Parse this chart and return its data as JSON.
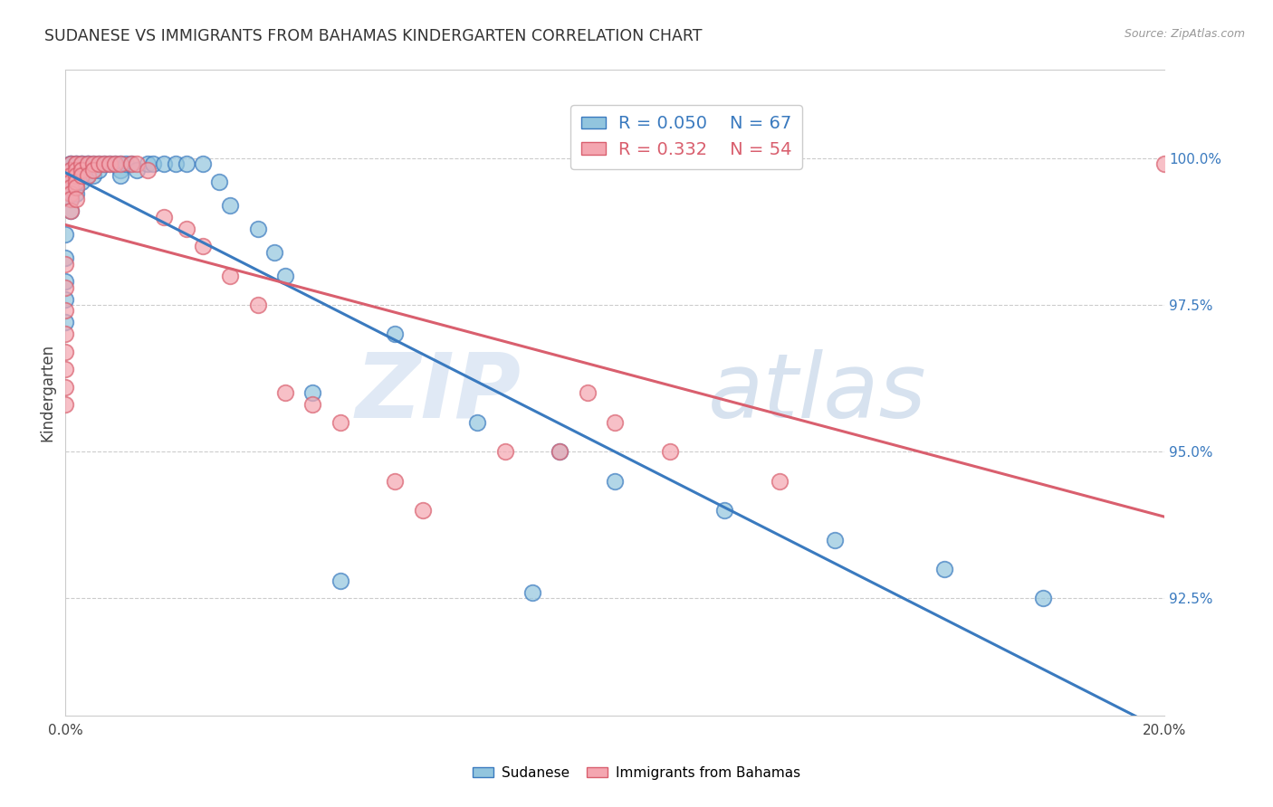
{
  "title": "SUDANESE VS IMMIGRANTS FROM BAHAMAS KINDERGARTEN CORRELATION CHART",
  "source": "Source: ZipAtlas.com",
  "ylabel": "Kindergarten",
  "xlim": [
    0.0,
    0.2
  ],
  "ylim": [
    0.905,
    1.015
  ],
  "blue_color": "#92c5de",
  "pink_color": "#f4a6b0",
  "blue_line_color": "#3a7abf",
  "pink_line_color": "#d95f6e",
  "watermark_zip": "ZIP",
  "watermark_atlas": "atlas",
  "blue_points_x": [
    0.0,
    0.0,
    0.0,
    0.0,
    0.0,
    0.001,
    0.001,
    0.001,
    0.001,
    0.001,
    0.001,
    0.001,
    0.001,
    0.001,
    0.001,
    0.002,
    0.002,
    0.002,
    0.002,
    0.002,
    0.002,
    0.002,
    0.003,
    0.003,
    0.003,
    0.003,
    0.003,
    0.004,
    0.004,
    0.004,
    0.004,
    0.005,
    0.005,
    0.005,
    0.006,
    0.006,
    0.007,
    0.008,
    0.009,
    0.01,
    0.01,
    0.01,
    0.011,
    0.012,
    0.013,
    0.015,
    0.016,
    0.018,
    0.02,
    0.022,
    0.025,
    0.028,
    0.03,
    0.035,
    0.038,
    0.04,
    0.045,
    0.06,
    0.075,
    0.09,
    0.1,
    0.12,
    0.14,
    0.16,
    0.178,
    0.085,
    0.05
  ],
  "blue_points_y": [
    0.987,
    0.983,
    0.979,
    0.976,
    0.972,
    0.999,
    0.999,
    0.998,
    0.997,
    0.997,
    0.996,
    0.995,
    0.994,
    0.993,
    0.991,
    0.999,
    0.999,
    0.998,
    0.997,
    0.996,
    0.995,
    0.994,
    0.999,
    0.999,
    0.998,
    0.997,
    0.996,
    0.999,
    0.999,
    0.998,
    0.997,
    0.999,
    0.998,
    0.997,
    0.999,
    0.998,
    0.999,
    0.999,
    0.999,
    0.999,
    0.998,
    0.997,
    0.999,
    0.999,
    0.998,
    0.999,
    0.999,
    0.999,
    0.999,
    0.999,
    0.999,
    0.996,
    0.992,
    0.988,
    0.984,
    0.98,
    0.96,
    0.97,
    0.955,
    0.95,
    0.945,
    0.94,
    0.935,
    0.93,
    0.925,
    0.926,
    0.928
  ],
  "pink_points_x": [
    0.0,
    0.0,
    0.0,
    0.0,
    0.0,
    0.0,
    0.0,
    0.0,
    0.001,
    0.001,
    0.001,
    0.001,
    0.001,
    0.001,
    0.001,
    0.001,
    0.002,
    0.002,
    0.002,
    0.002,
    0.002,
    0.002,
    0.003,
    0.003,
    0.003,
    0.004,
    0.004,
    0.005,
    0.005,
    0.006,
    0.007,
    0.008,
    0.009,
    0.01,
    0.012,
    0.013,
    0.015,
    0.018,
    0.022,
    0.025,
    0.03,
    0.035,
    0.04,
    0.045,
    0.05,
    0.06,
    0.065,
    0.08,
    0.09,
    0.095,
    0.1,
    0.11,
    0.13,
    0.2
  ],
  "pink_points_y": [
    0.982,
    0.978,
    0.974,
    0.97,
    0.967,
    0.964,
    0.961,
    0.958,
    0.999,
    0.998,
    0.997,
    0.996,
    0.995,
    0.994,
    0.993,
    0.991,
    0.999,
    0.998,
    0.997,
    0.996,
    0.995,
    0.993,
    0.999,
    0.998,
    0.997,
    0.999,
    0.997,
    0.999,
    0.998,
    0.999,
    0.999,
    0.999,
    0.999,
    0.999,
    0.999,
    0.999,
    0.998,
    0.99,
    0.988,
    0.985,
    0.98,
    0.975,
    0.96,
    0.958,
    0.955,
    0.945,
    0.94,
    0.95,
    0.95,
    0.96,
    0.955,
    0.95,
    0.945,
    0.999
  ]
}
